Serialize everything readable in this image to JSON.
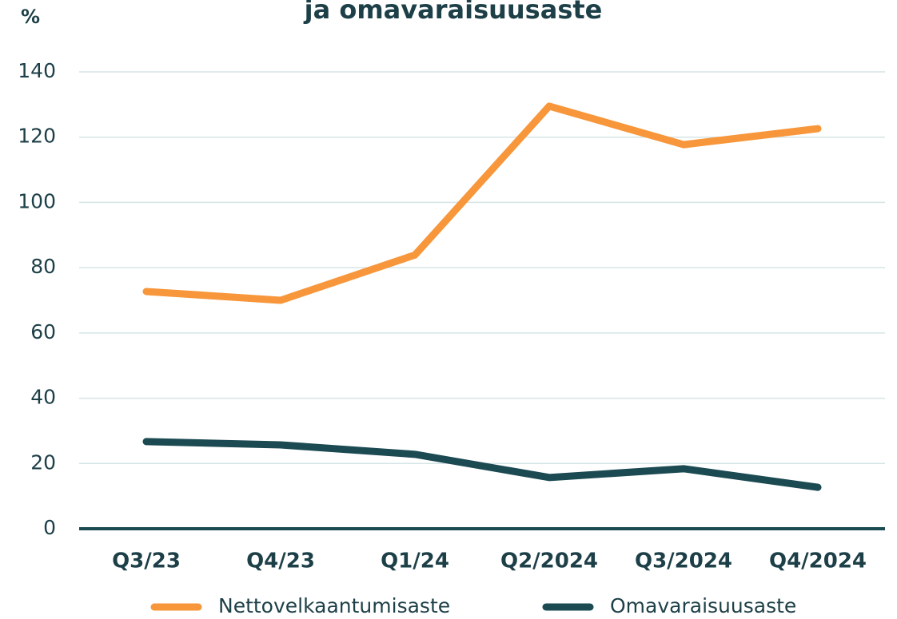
{
  "chart_data": {
    "type": "line",
    "title": "ja omavaraisuusaste",
    "y_label": "%",
    "categories": [
      "Q3/23",
      "Q4/23",
      "Q1/24",
      "Q2/2024",
      "Q3/2024",
      "Q4/2024"
    ],
    "series": [
      {
        "name": "Nettovelkaantumisaste",
        "color": "#f7963a",
        "values": [
          72.7,
          70,
          83.9,
          129.5,
          117.7,
          122.6
        ]
      },
      {
        "name": "Omavaraisuusaste",
        "color": "#1b4a52",
        "values": [
          26.7,
          25.7,
          22.8,
          15.7,
          18.4,
          12.7
        ]
      }
    ],
    "ylim": [
      0,
      140
    ],
    "yticks": [
      0,
      20,
      40,
      60,
      80,
      100,
      120,
      140
    ],
    "grid": true,
    "legend": "bottom"
  }
}
